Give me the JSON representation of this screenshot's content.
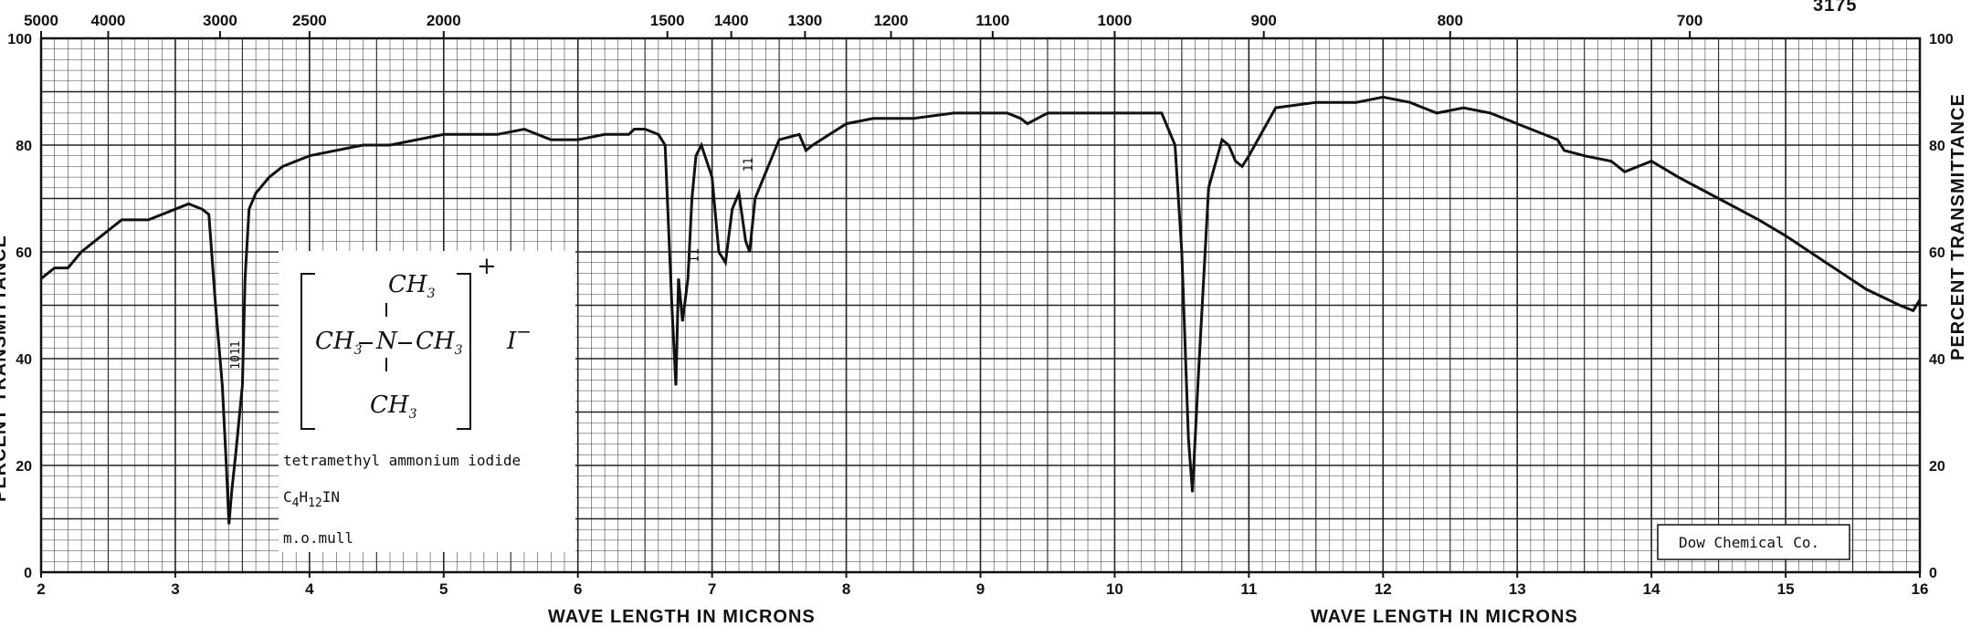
{
  "catalog_number": "3175",
  "chart_data": {
    "type": "line",
    "x_unit": "microns",
    "xlabel": "WAVE LENGTH IN MICRONS",
    "xlabel_repeat": "WAVE LENGTH IN MICRONS",
    "ylabel_right": "PERCENT TRANSMITTANCE",
    "ylabel_left": "PERCENT TRANSMITTANCE",
    "xlim": [
      2,
      16
    ],
    "ylim": [
      0,
      100
    ],
    "grid": true,
    "x_ticks": [
      "2",
      "3",
      "4",
      "5",
      "6",
      "7",
      "8",
      "9",
      "10",
      "11",
      "12",
      "13",
      "14",
      "15",
      "16"
    ],
    "top_ticks": [
      {
        "label": "5000",
        "cm": 5000
      },
      {
        "label": "4000",
        "cm": 4000
      },
      {
        "label": "3000",
        "cm": 3000
      },
      {
        "label": "2500",
        "cm": 2500
      },
      {
        "label": "2000",
        "cm": 2000
      },
      {
        "label": "1500",
        "cm": 1500
      },
      {
        "label": "1400",
        "cm": 1400
      },
      {
        "label": "1300",
        "cm": 1300
      },
      {
        "label": "1200",
        "cm": 1200
      },
      {
        "label": "1100",
        "cm": 1100
      },
      {
        "label": "1000",
        "cm": 1000
      },
      {
        "label": "900",
        "cm": 900
      },
      {
        "label": "800",
        "cm": 800
      },
      {
        "label": "700",
        "cm": 700
      }
    ],
    "y_ticks": [
      "0",
      "20",
      "40",
      "60",
      "80",
      "100"
    ],
    "series": [
      {
        "color": "#111111",
        "x": [
          2.0,
          2.1,
          2.2,
          2.3,
          2.45,
          2.6,
          2.8,
          3.0,
          3.1,
          3.2,
          3.25,
          3.3,
          3.35,
          3.38,
          3.4,
          3.42,
          3.45,
          3.5,
          3.52,
          3.55,
          3.6,
          3.7,
          3.8,
          4.0,
          4.2,
          4.4,
          4.6,
          4.8,
          5.0,
          5.2,
          5.4,
          5.6,
          5.8,
          6.0,
          6.2,
          6.38,
          6.42,
          6.5,
          6.6,
          6.65,
          6.7,
          6.73,
          6.75,
          6.78,
          6.82,
          6.85,
          6.88,
          6.92,
          7.0,
          7.05,
          7.1,
          7.15,
          7.2,
          7.25,
          7.28,
          7.32,
          7.5,
          7.65,
          7.7,
          7.75,
          8.0,
          8.2,
          8.5,
          8.8,
          9.0,
          9.2,
          9.3,
          9.35,
          9.5,
          9.8,
          10.0,
          10.2,
          10.35,
          10.45,
          10.5,
          10.55,
          10.58,
          10.62,
          10.7,
          10.8,
          10.85,
          10.9,
          10.95,
          11.0,
          11.2,
          11.5,
          11.8,
          12.0,
          12.2,
          12.3,
          12.4,
          12.6,
          12.8,
          13.0,
          13.3,
          13.35,
          13.5,
          13.7,
          13.8,
          14.0,
          14.2,
          14.5,
          14.8,
          15.0,
          15.3,
          15.6,
          15.85,
          15.95,
          16.0
        ],
        "y": [
          55,
          57,
          57,
          60,
          63,
          66,
          66,
          68,
          69,
          68,
          67,
          50,
          35,
          20,
          9,
          15,
          22,
          35,
          55,
          68,
          71,
          74,
          76,
          78,
          79,
          80,
          80,
          81,
          82,
          82,
          82,
          83,
          81,
          81,
          82,
          82,
          83,
          83,
          82,
          80,
          50,
          35,
          55,
          47,
          55,
          70,
          78,
          80,
          74,
          60,
          58,
          68,
          71,
          62,
          60,
          70,
          81,
          82,
          79,
          80,
          84,
          85,
          85,
          86,
          86,
          86,
          85,
          84,
          86,
          86,
          86,
          86,
          86,
          80,
          60,
          25,
          15,
          35,
          72,
          81,
          80,
          77,
          76,
          78,
          87,
          88,
          88,
          89,
          88,
          87,
          86,
          87,
          86,
          84,
          81,
          79,
          78,
          77,
          75,
          77,
          74,
          70,
          66,
          63,
          58,
          53,
          50,
          49,
          51
        ]
      }
    ],
    "annotations": [
      {
        "text": "1011",
        "x": 3.45,
        "y": 38
      },
      {
        "text": "11",
        "x": 6.87,
        "y": 58
      },
      {
        "text": "11",
        "x": 7.27,
        "y": 75
      }
    ],
    "inset": {
      "name": "tetramethyl ammonium iodide",
      "formula_main": "C",
      "formula_sub1": "4",
      "formula_mid": "H",
      "formula_sub2": "12",
      "formula_end": "IN",
      "sample": "m.o.mull",
      "struct_top": "CH",
      "struct_mid_left": "CH",
      "struct_n": "N",
      "struct_mid_right": "CH",
      "struct_bottom": "CH",
      "struct_sub": "3",
      "charge": "+",
      "anion": "I",
      "anion_charge": "−"
    },
    "credit": "Dow Chemical Co."
  }
}
